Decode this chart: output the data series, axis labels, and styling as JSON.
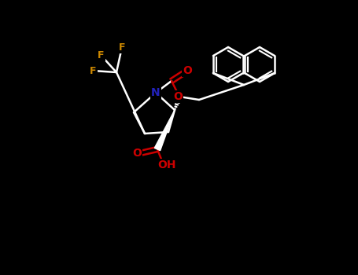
{
  "bg_color": "#000000",
  "bond_color": "#ffffff",
  "N_color": "#2222bb",
  "O_color": "#cc0000",
  "F_color": "#cc8800",
  "line_width": 1.8,
  "figsize": [
    4.55,
    3.5
  ],
  "dpi": 100,
  "xlim": [
    0,
    455
  ],
  "ylim": [
    0,
    350
  ]
}
